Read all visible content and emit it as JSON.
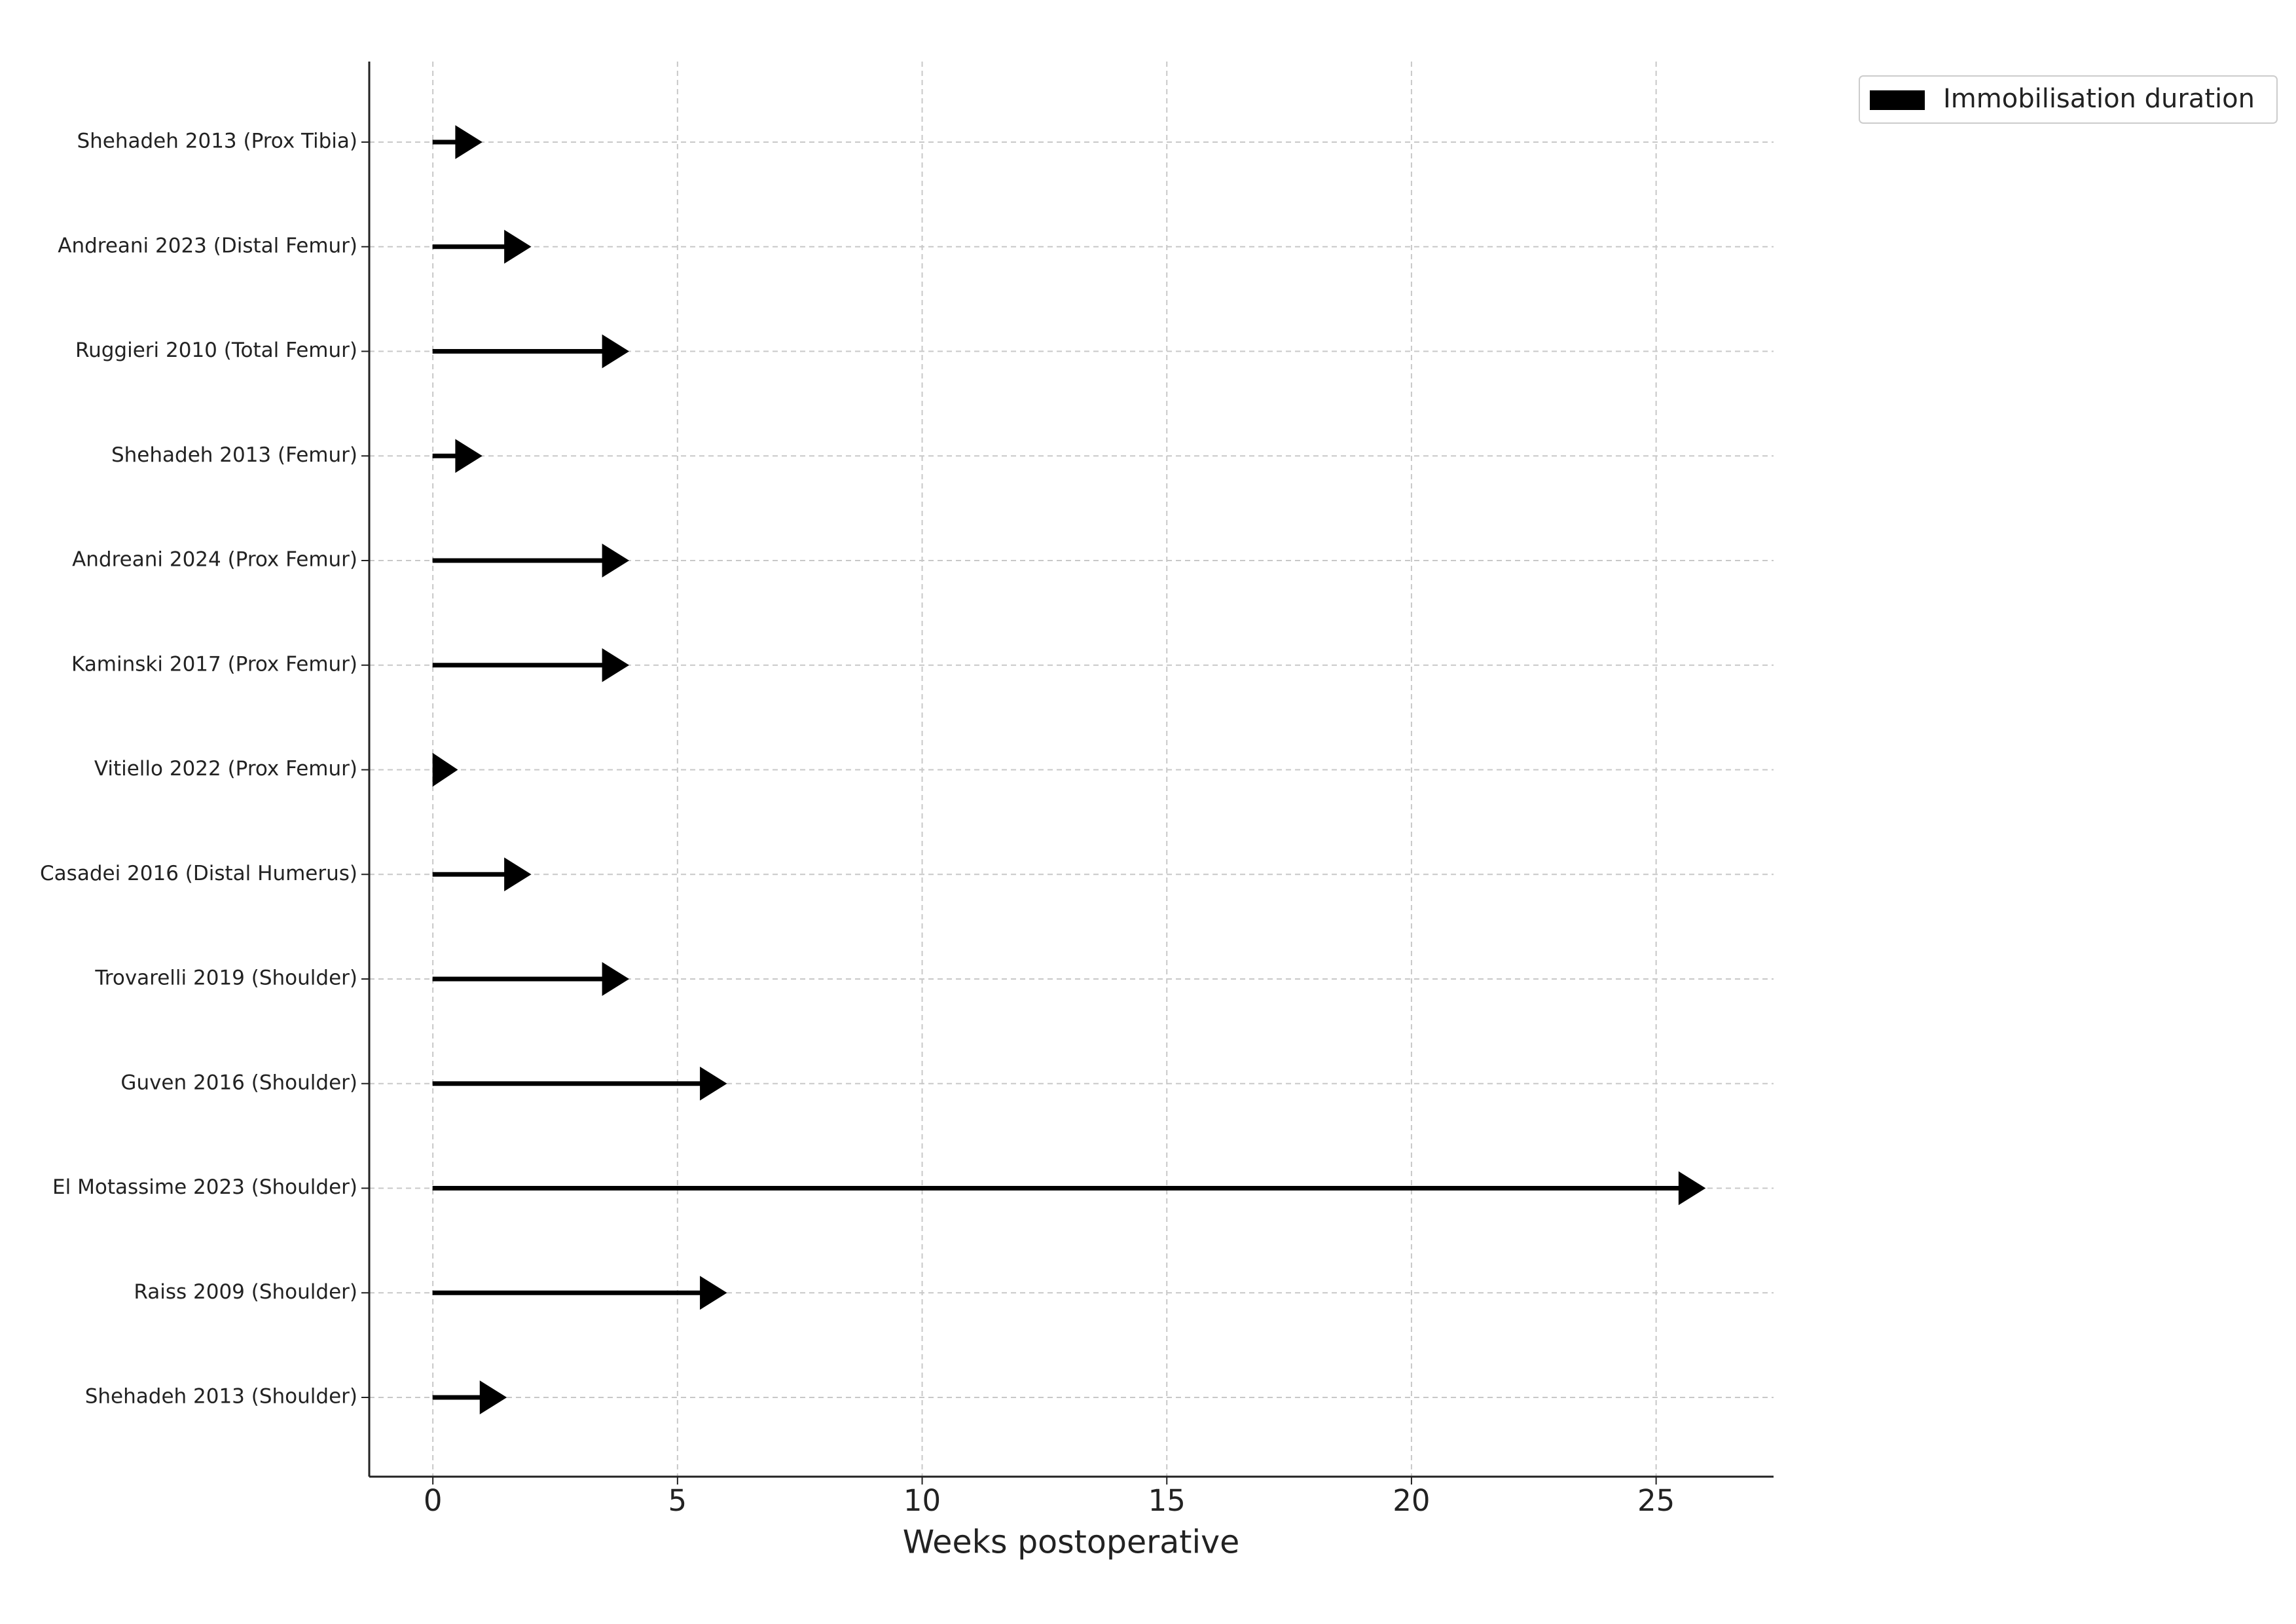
{
  "chart_data": {
    "type": "arrow",
    "xlabel": "Weeks postoperative",
    "categories": [
      "Shehadeh 2013 (Prox Tibia)",
      "Andreani 2023 (Distal Femur)",
      "Ruggieri 2010 (Total Femur)",
      "Shehadeh 2013 (Femur)",
      "Andreani 2024 (Prox Femur)",
      "Kaminski 2017 (Prox Femur)",
      "Vitiello 2022 (Prox Femur)",
      "Casadei 2016 (Distal Humerus)",
      "Trovarelli 2019 (Shoulder)",
      "Guven 2016 (Shoulder)",
      "El Motassime 2023 (Shoulder)",
      "Raiss 2009 (Shoulder)",
      "Shehadeh 2013 (Shoulder)"
    ],
    "series": [
      {
        "name": "Immobilisation duration",
        "color": "#000000",
        "values": [
          1,
          2,
          4,
          1,
          4,
          4,
          0.5,
          2,
          4,
          6,
          26,
          6,
          1.5
        ]
      }
    ],
    "xlim": [
      -1.3,
      27.4
    ],
    "xticks": [
      0,
      5,
      10,
      15,
      20,
      25
    ],
    "grid": true,
    "legend": "outside upper right"
  }
}
